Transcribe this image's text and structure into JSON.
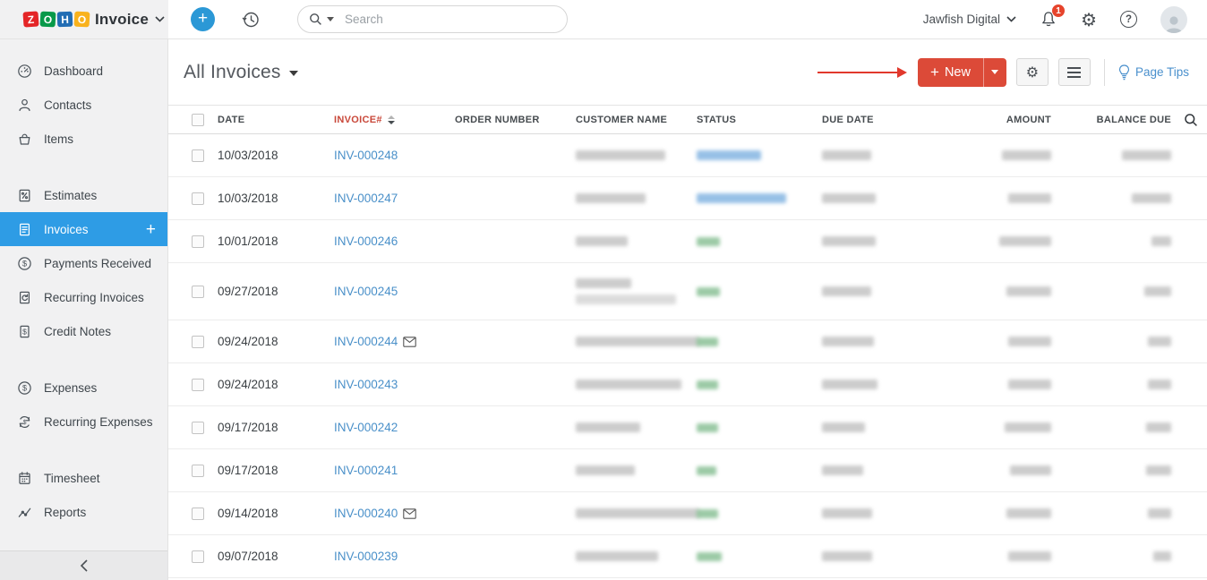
{
  "brand": {
    "logo_letters": [
      {
        "ch": "Z",
        "color": "#e42527"
      },
      {
        "ch": "O",
        "color": "#089949"
      },
      {
        "ch": "H",
        "color": "#226db4"
      },
      {
        "ch": "O",
        "color": "#f9b21d"
      }
    ],
    "product": "Invoice"
  },
  "topbar": {
    "search_placeholder": "Search",
    "org": "Jawfish Digital",
    "notifications": "1"
  },
  "sidebar": {
    "items": [
      {
        "label": "Dashboard",
        "icon": "dashboard-icon"
      },
      {
        "label": "Contacts",
        "icon": "contacts-icon"
      },
      {
        "label": "Items",
        "icon": "items-icon"
      },
      {
        "label": "Estimates",
        "icon": "estimates-icon",
        "gap_before": true
      },
      {
        "label": "Invoices",
        "icon": "invoices-icon",
        "selected": true,
        "quick_add": true
      },
      {
        "label": "Payments Received",
        "icon": "payments-icon"
      },
      {
        "label": "Recurring Invoices",
        "icon": "recurring-invoices-icon"
      },
      {
        "label": "Credit Notes",
        "icon": "credit-notes-icon"
      },
      {
        "label": "Expenses",
        "icon": "expenses-icon",
        "gap_before": true
      },
      {
        "label": "Recurring Expenses",
        "icon": "recurring-expenses-icon"
      },
      {
        "label": "Timesheet",
        "icon": "timesheet-icon",
        "gap_before": true
      },
      {
        "label": "Reports",
        "icon": "reports-icon"
      }
    ]
  },
  "page": {
    "title": "All Invoices",
    "new_button": "New",
    "page_tips": "Page Tips"
  },
  "table": {
    "headers": {
      "date": "DATE",
      "invoice": "INVOICE#",
      "order": "ORDER NUMBER",
      "customer": "CUSTOMER NAME",
      "status": "STATUS",
      "due": "DUE DATE",
      "amount": "AMOUNT",
      "balance": "BALANCE DUE"
    },
    "sorted_by": "INVOICE#",
    "sort_direction": "descending",
    "rows": [
      {
        "date": "10/03/2018",
        "invoice": "INV-000248",
        "emailed": false,
        "status_tone": "blue",
        "redact": {
          "customer": [
            100
          ],
          "status": 72,
          "due": 55,
          "amount": 55,
          "balance": 55
        }
      },
      {
        "date": "10/03/2018",
        "invoice": "INV-000247",
        "emailed": false,
        "status_tone": "blue",
        "redact": {
          "customer": [
            78
          ],
          "status": 100,
          "due": 60,
          "amount": 48,
          "balance": 44
        }
      },
      {
        "date": "10/01/2018",
        "invoice": "INV-000246",
        "emailed": false,
        "status_tone": "green",
        "redact": {
          "customer": [
            58
          ],
          "status": 26,
          "due": 60,
          "amount": 58,
          "balance": 22
        }
      },
      {
        "date": "09/27/2018",
        "invoice": "INV-000245",
        "emailed": false,
        "status_tone": "green",
        "tall": true,
        "redact": {
          "customer": [
            62,
            112
          ],
          "status": 26,
          "due": 55,
          "amount": 50,
          "balance": 30
        }
      },
      {
        "date": "09/24/2018",
        "invoice": "INV-000244",
        "emailed": true,
        "status_tone": "green",
        "redact": {
          "customer": [
            138
          ],
          "status": 24,
          "due": 58,
          "amount": 48,
          "balance": 26
        }
      },
      {
        "date": "09/24/2018",
        "invoice": "INV-000243",
        "emailed": false,
        "status_tone": "green",
        "redact": {
          "customer": [
            118
          ],
          "status": 24,
          "due": 62,
          "amount": 48,
          "balance": 26
        }
      },
      {
        "date": "09/17/2018",
        "invoice": "INV-000242",
        "emailed": false,
        "status_tone": "green",
        "redact": {
          "customer": [
            72
          ],
          "status": 24,
          "due": 48,
          "amount": 52,
          "balance": 28
        }
      },
      {
        "date": "09/17/2018",
        "invoice": "INV-000241",
        "emailed": false,
        "status_tone": "green",
        "redact": {
          "customer": [
            66
          ],
          "status": 22,
          "due": 46,
          "amount": 46,
          "balance": 28
        }
      },
      {
        "date": "09/14/2018",
        "invoice": "INV-000240",
        "emailed": true,
        "status_tone": "green",
        "redact": {
          "customer": [
            138
          ],
          "status": 24,
          "due": 56,
          "amount": 50,
          "balance": 26
        }
      },
      {
        "date": "09/07/2018",
        "invoice": "INV-000239",
        "emailed": false,
        "status_tone": "green",
        "redact": {
          "customer": [
            92
          ],
          "status": 28,
          "due": 56,
          "amount": 48,
          "balance": 20
        }
      }
    ]
  },
  "colors": {
    "sidebar_selected_blue": "#2e9ce5",
    "invoice_link_blue": "#4a90c9",
    "new_button_red": "#dc4a38",
    "sorted_header_red": "#c9483a",
    "annotation_arrow_red": "#e1382c",
    "notification_badge_red": "#e6442c",
    "page_tips_blue": "#4a90cd",
    "redacted_text_gray": "#9a9a9a",
    "redacted_status_blue": "#74abde",
    "redacted_status_green": "#83bd90"
  }
}
